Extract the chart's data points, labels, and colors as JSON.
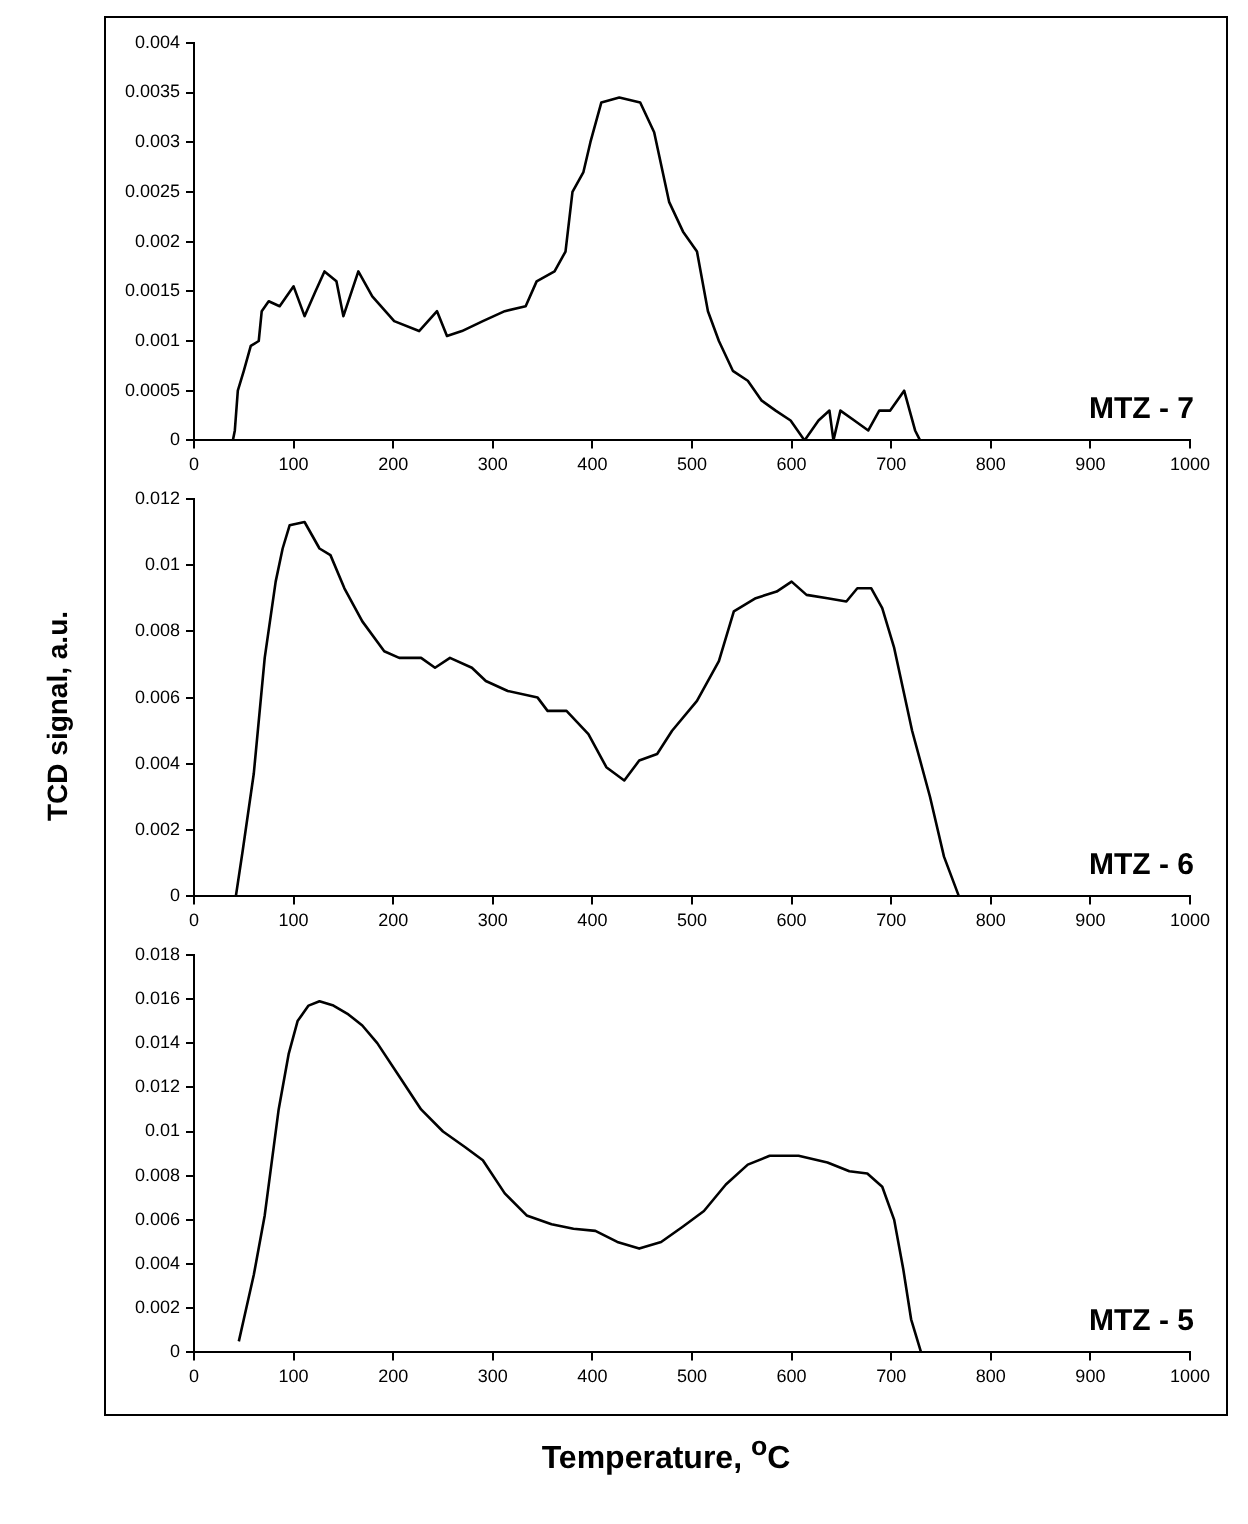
{
  "chart_data": [
    {
      "type": "line",
      "xlim": [
        0,
        1000
      ],
      "xticks": [
        0,
        100,
        200,
        300,
        400,
        500,
        600,
        700,
        800,
        900,
        1000
      ],
      "ylim": [
        0,
        0.004
      ],
      "yticks": [
        0,
        0.0005,
        0.001,
        0.0015,
        0.002,
        0.0025,
        0.003,
        0.0035,
        0.004
      ],
      "grid": false,
      "legend": false,
      "marker": "none",
      "series": [
        {
          "name": "MTZ - 7",
          "color": "#000000",
          "x": [
            39,
            41,
            44,
            50,
            57,
            65,
            68,
            75,
            86,
            100,
            111,
            122,
            131,
            143,
            150,
            165,
            179,
            201,
            226,
            244,
            254,
            269,
            290,
            312,
            333,
            344,
            362,
            373,
            380,
            391,
            398,
            409,
            427,
            448,
            462,
            477,
            491,
            505,
            516,
            527,
            541,
            556,
            570,
            584,
            599,
            613,
            627,
            638,
            642,
            649,
            663,
            677,
            688,
            699,
            713,
            724,
            729
          ],
          "values": [
            0,
            0.0001,
            0.0005,
            0.0007,
            0.00095,
            0.001,
            0.0013,
            0.0014,
            0.00135,
            0.00155,
            0.00125,
            0.0015,
            0.0017,
            0.0016,
            0.00125,
            0.0017,
            0.00145,
            0.0012,
            0.0011,
            0.0013,
            0.00105,
            0.0011,
            0.0012,
            0.0013,
            0.00135,
            0.0016,
            0.0017,
            0.0019,
            0.0025,
            0.0027,
            0.003,
            0.0034,
            0.00345,
            0.0034,
            0.0031,
            0.0024,
            0.0021,
            0.0019,
            0.0013,
            0.001,
            0.0007,
            0.0006,
            0.0004,
            0.0003,
            0.0002,
            0,
            0.0002,
            0.0003,
            0,
            0.0003,
            0.0002,
            0.0001,
            0.0003,
            0.0003,
            0.0005,
            0.0001,
            0
          ]
        }
      ]
    },
    {
      "type": "line",
      "ylabel": "TCD signal, a.u.",
      "xlim": [
        0,
        1000
      ],
      "xticks": [
        0,
        100,
        200,
        300,
        400,
        500,
        600,
        700,
        800,
        900,
        1000
      ],
      "ylim": [
        0,
        0.012
      ],
      "yticks": [
        0,
        0.002,
        0.004,
        0.006,
        0.008,
        0.01,
        0.012
      ],
      "grid": false,
      "legend": false,
      "marker": "none",
      "series": [
        {
          "name": "MTZ - 6",
          "color": "#000000",
          "x": [
            42,
            49,
            60,
            71,
            82,
            89,
            96,
            111,
            126,
            137,
            151,
            169,
            191,
            206,
            228,
            242,
            257,
            279,
            293,
            315,
            345,
            355,
            374,
            396,
            414,
            432,
            447,
            465,
            480,
            505,
            527,
            542,
            564,
            585,
            600,
            615,
            636,
            655,
            666,
            680,
            691,
            703,
            721,
            739,
            753,
            768
          ],
          "values": [
            0,
            0.0014,
            0.0037,
            0.0072,
            0.0095,
            0.0105,
            0.0112,
            0.0113,
            0.0105,
            0.0103,
            0.0093,
            0.0083,
            0.0074,
            0.0072,
            0.0072,
            0.0069,
            0.0072,
            0.0069,
            0.0065,
            0.0062,
            0.006,
            0.0056,
            0.0056,
            0.0049,
            0.0039,
            0.0035,
            0.0041,
            0.0043,
            0.005,
            0.0059,
            0.0071,
            0.0086,
            0.009,
            0.0092,
            0.0095,
            0.0091,
            0.009,
            0.0089,
            0.0093,
            0.0093,
            0.0087,
            0.0075,
            0.005,
            0.003,
            0.0012,
            0
          ]
        }
      ]
    },
    {
      "type": "line",
      "xlabel": "Temperature, $^{o}$C",
      "xlim": [
        0,
        1000
      ],
      "xticks": [
        0,
        100,
        200,
        300,
        400,
        500,
        600,
        700,
        800,
        900,
        1000
      ],
      "ylim": [
        0,
        0.018
      ],
      "yticks": [
        0,
        0.002,
        0.004,
        0.006,
        0.008,
        0.01,
        0.012,
        0.014,
        0.016,
        0.018
      ],
      "grid": false,
      "legend": false,
      "marker": "none",
      "series": [
        {
          "name": "MTZ - 5",
          "color": "#000000",
          "x": [
            45,
            50,
            60,
            71,
            85,
            95,
            104,
            115,
            126,
            140,
            155,
            169,
            184,
            206,
            228,
            250,
            272,
            290,
            312,
            334,
            359,
            381,
            403,
            425,
            447,
            469,
            491,
            512,
            534,
            556,
            578,
            607,
            636,
            658,
            676,
            691,
            703,
            712,
            720,
            730
          ],
          "values": [
            0.0005,
            0.0015,
            0.0035,
            0.0062,
            0.011,
            0.0135,
            0.015,
            0.0157,
            0.0159,
            0.0157,
            0.0153,
            0.0148,
            0.014,
            0.0125,
            0.011,
            0.01,
            0.0093,
            0.0087,
            0.0072,
            0.0062,
            0.0058,
            0.0056,
            0.0055,
            0.005,
            0.0047,
            0.005,
            0.0057,
            0.0064,
            0.0076,
            0.0085,
            0.0089,
            0.0089,
            0.0086,
            0.0082,
            0.0081,
            0.0075,
            0.006,
            0.0038,
            0.0015,
            0
          ]
        }
      ]
    }
  ]
}
